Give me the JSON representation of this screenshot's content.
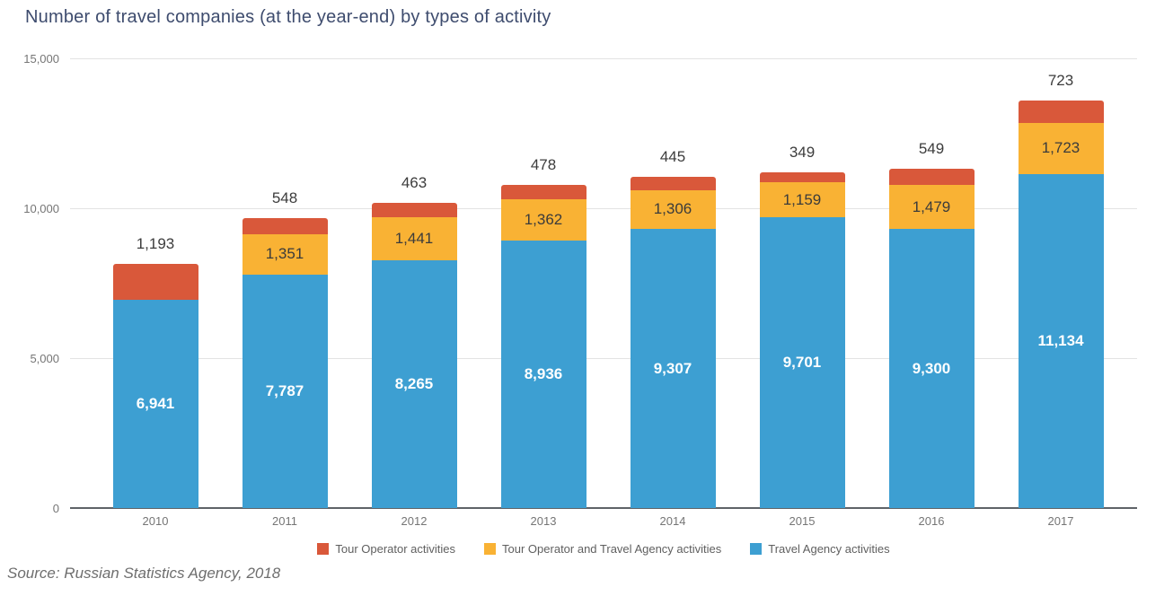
{
  "title": "Number of travel companies (at the year-end) by types of activity",
  "source_note": "Source: Russian Statistics Agency, 2018",
  "colors": {
    "tour_operator": "#d9583a",
    "combined": "#f9b234",
    "travel_agency": "#3d9fd2",
    "title_text": "#3e4c6e",
    "axis_text": "#757575",
    "gridline": "#e3e3e3",
    "zero_axis": "#5f6368"
  },
  "chart_data": {
    "type": "bar",
    "stacked": true,
    "title": "Number of travel companies (at the year-end) by types of activity",
    "categories": [
      "2010",
      "2011",
      "2012",
      "2013",
      "2014",
      "2015",
      "2016",
      "2017"
    ],
    "series": [
      {
        "name": "Tour Operator activities",
        "color": "#d9583a",
        "values": [
          1193,
          548,
          463,
          478,
          445,
          349,
          549,
          723
        ],
        "label_position": "above_bar",
        "label_color": "#3c3c3c"
      },
      {
        "name": "Tour Operator and Travel Agency activities",
        "color": "#f9b234",
        "values": [
          0,
          1351,
          1441,
          1362,
          1306,
          1159,
          1479,
          1723
        ],
        "label_position": "inside",
        "label_color": "#3b3b3b"
      },
      {
        "name": "Travel Agency activities",
        "color": "#3d9fd2",
        "values": [
          6941,
          7787,
          8265,
          8936,
          9307,
          9701,
          9300,
          11134
        ],
        "label_position": "inside",
        "label_color": "#ffffff",
        "label_bold": true
      }
    ],
    "xlabel": "",
    "ylabel": "",
    "ylim": [
      0,
      15000
    ],
    "yticks": [
      {
        "value": 15000,
        "label": "15,000"
      },
      {
        "value": 10000,
        "label": "10,000"
      },
      {
        "value": 5000,
        "label": "5,000"
      },
      {
        "value": 0,
        "label": "0"
      }
    ],
    "grid": "horizontal",
    "legend_position": "bottom-center",
    "stack_order_bottom_to_top": [
      2,
      1,
      0
    ]
  }
}
